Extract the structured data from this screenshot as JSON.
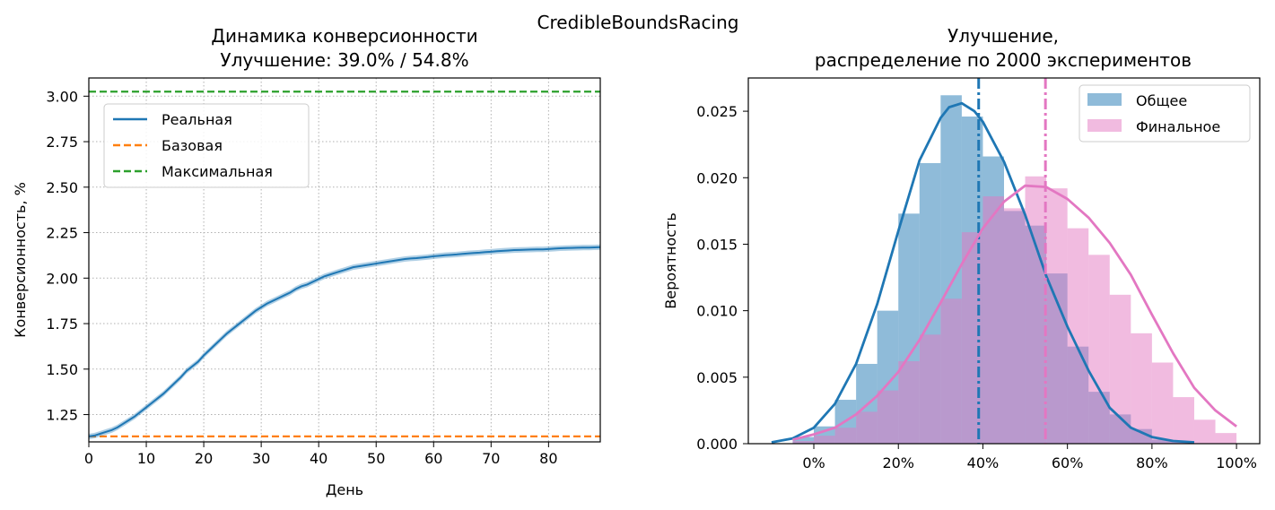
{
  "figure": {
    "suptitle": "CredibleBoundsRacing"
  },
  "chart_data": [
    {
      "type": "line",
      "title_line1": "Динамика конверсионности",
      "title_line2": "Улучшение: 39.0% / 54.8%",
      "xlabel": "День",
      "ylabel": "Конверсионность, %",
      "xlim": [
        0,
        89
      ],
      "ylim": [
        1.1,
        3.1
      ],
      "xticks": [
        0,
        10,
        20,
        30,
        40,
        50,
        60,
        70,
        80
      ],
      "xtick_labels": [
        "0",
        "10",
        "20",
        "30",
        "40",
        "50",
        "60",
        "70",
        "80"
      ],
      "yticks": [
        1.25,
        1.5,
        1.75,
        2.0,
        2.25,
        2.5,
        2.75,
        3.0
      ],
      "ytick_labels": [
        "1.25",
        "1.50",
        "1.75",
        "2.00",
        "2.25",
        "2.50",
        "2.75",
        "3.00"
      ],
      "grid": true,
      "legend_position": "upper-left",
      "series": [
        {
          "name": "Реальная",
          "color": "#1f77b4",
          "style": "solid",
          "band_halfwidth": 0.015,
          "x": [
            0,
            1,
            2,
            3,
            4,
            5,
            6,
            7,
            8,
            9,
            10,
            11,
            12,
            13,
            14,
            15,
            16,
            17,
            18,
            19,
            20,
            21,
            22,
            23,
            24,
            25,
            26,
            27,
            28,
            29,
            30,
            31,
            32,
            33,
            34,
            35,
            36,
            37,
            38,
            39,
            40,
            41,
            42,
            43,
            44,
            45,
            46,
            47,
            48,
            49,
            50,
            51,
            52,
            53,
            54,
            55,
            56,
            57,
            58,
            59,
            60,
            61,
            62,
            63,
            64,
            65,
            66,
            67,
            68,
            69,
            70,
            71,
            72,
            73,
            74,
            75,
            76,
            77,
            78,
            79,
            80,
            81,
            82,
            83,
            84,
            85,
            86,
            87,
            88,
            89
          ],
          "y": [
            1.13,
            1.135,
            1.145,
            1.155,
            1.165,
            1.18,
            1.2,
            1.22,
            1.24,
            1.265,
            1.29,
            1.315,
            1.34,
            1.365,
            1.395,
            1.425,
            1.455,
            1.49,
            1.515,
            1.54,
            1.575,
            1.605,
            1.635,
            1.665,
            1.695,
            1.72,
            1.745,
            1.77,
            1.795,
            1.82,
            1.84,
            1.86,
            1.875,
            1.89,
            1.905,
            1.92,
            1.94,
            1.955,
            1.965,
            1.98,
            1.995,
            2.01,
            2.02,
            2.03,
            2.04,
            2.05,
            2.06,
            2.065,
            2.07,
            2.075,
            2.08,
            2.085,
            2.09,
            2.095,
            2.1,
            2.105,
            2.108,
            2.11,
            2.113,
            2.116,
            2.12,
            2.123,
            2.126,
            2.128,
            2.13,
            2.133,
            2.136,
            2.138,
            2.14,
            2.143,
            2.145,
            2.148,
            2.15,
            2.152,
            2.154,
            2.155,
            2.156,
            2.157,
            2.158,
            2.158,
            2.16,
            2.162,
            2.164,
            2.165,
            2.166,
            2.167,
            2.168,
            2.168,
            2.169,
            2.17
          ]
        },
        {
          "name": "Базовая",
          "color": "#ff7f0e",
          "style": "dashed",
          "y_constant": 1.13
        },
        {
          "name": "Максимальная",
          "color": "#2ca02c",
          "style": "dashed",
          "y_constant": 3.025
        }
      ]
    },
    {
      "type": "histogram",
      "title_line1": "Улучшение,",
      "title_line2": "распределение по 2000 экспериментов",
      "xlabel": "",
      "ylabel": "Вероятность",
      "xlim": [
        -0.155,
        1.055
      ],
      "ylim": [
        0,
        0.0275
      ],
      "xticks": [
        0,
        0.2,
        0.4,
        0.6,
        0.8,
        1.0
      ],
      "xtick_labels": [
        "0%",
        "20%",
        "40%",
        "60%",
        "80%",
        "100%"
      ],
      "yticks": [
        0,
        0.005,
        0.01,
        0.015,
        0.02,
        0.025
      ],
      "ytick_labels": [
        "0.000",
        "0.005",
        "0.010",
        "0.015",
        "0.020",
        "0.025"
      ],
      "grid": false,
      "legend_position": "upper-right",
      "series": [
        {
          "name": "Общее",
          "bar_color": "#1f77b4",
          "bar_opacity": 0.5,
          "line_color": "#1f77b4",
          "mean": 0.39,
          "bin_edges": [
            -0.05,
            0.0,
            0.05,
            0.1,
            0.15,
            0.2,
            0.25,
            0.3,
            0.35,
            0.4,
            0.45,
            0.5,
            0.55,
            0.6,
            0.65,
            0.7,
            0.75,
            0.8,
            0.85,
            0.9
          ],
          "bin_values": [
            0.0005,
            0.0013,
            0.0033,
            0.006,
            0.01,
            0.0173,
            0.0211,
            0.0262,
            0.0246,
            0.0216,
            0.0175,
            0.0164,
            0.0128,
            0.0073,
            0.0039,
            0.0022,
            0.0011,
            0.0003,
            0.0001
          ],
          "kde_x": [
            -0.1,
            -0.05,
            0.0,
            0.05,
            0.1,
            0.15,
            0.2,
            0.25,
            0.3,
            0.32,
            0.35,
            0.38,
            0.4,
            0.45,
            0.5,
            0.55,
            0.6,
            0.65,
            0.7,
            0.75,
            0.8,
            0.85,
            0.9
          ],
          "kde_y": [
            0.0001,
            0.0004,
            0.0012,
            0.003,
            0.006,
            0.0105,
            0.016,
            0.0213,
            0.0245,
            0.0253,
            0.0256,
            0.025,
            0.0242,
            0.0212,
            0.0172,
            0.0126,
            0.0088,
            0.0055,
            0.0027,
            0.0012,
            0.0005,
            0.0002,
            0.0001
          ]
        },
        {
          "name": "Финальное",
          "bar_color": "#e377c2",
          "bar_opacity": 0.5,
          "line_color": "#e377c2",
          "mean": 0.548,
          "bin_edges": [
            -0.05,
            0.0,
            0.05,
            0.1,
            0.15,
            0.2,
            0.25,
            0.3,
            0.35,
            0.4,
            0.45,
            0.5,
            0.55,
            0.6,
            0.65,
            0.7,
            0.75,
            0.8,
            0.85,
            0.9,
            0.95,
            1.0
          ],
          "bin_values": [
            0.0002,
            0.0006,
            0.0012,
            0.0024,
            0.004,
            0.0062,
            0.0082,
            0.0109,
            0.0159,
            0.0186,
            0.0177,
            0.0201,
            0.0192,
            0.0162,
            0.0142,
            0.0112,
            0.0083,
            0.0061,
            0.0035,
            0.0018,
            0.0008
          ],
          "kde_x": [
            -0.05,
            0.0,
            0.05,
            0.1,
            0.15,
            0.2,
            0.25,
            0.3,
            0.35,
            0.4,
            0.45,
            0.5,
            0.55,
            0.6,
            0.65,
            0.7,
            0.75,
            0.8,
            0.85,
            0.9,
            0.95,
            1.0
          ],
          "kde_y": [
            0.0003,
            0.0007,
            0.0012,
            0.0022,
            0.0036,
            0.0054,
            0.0078,
            0.0106,
            0.0135,
            0.0162,
            0.0182,
            0.0194,
            0.0193,
            0.0184,
            0.017,
            0.0151,
            0.0127,
            0.0097,
            0.0068,
            0.0042,
            0.0025,
            0.0013
          ]
        }
      ]
    }
  ]
}
